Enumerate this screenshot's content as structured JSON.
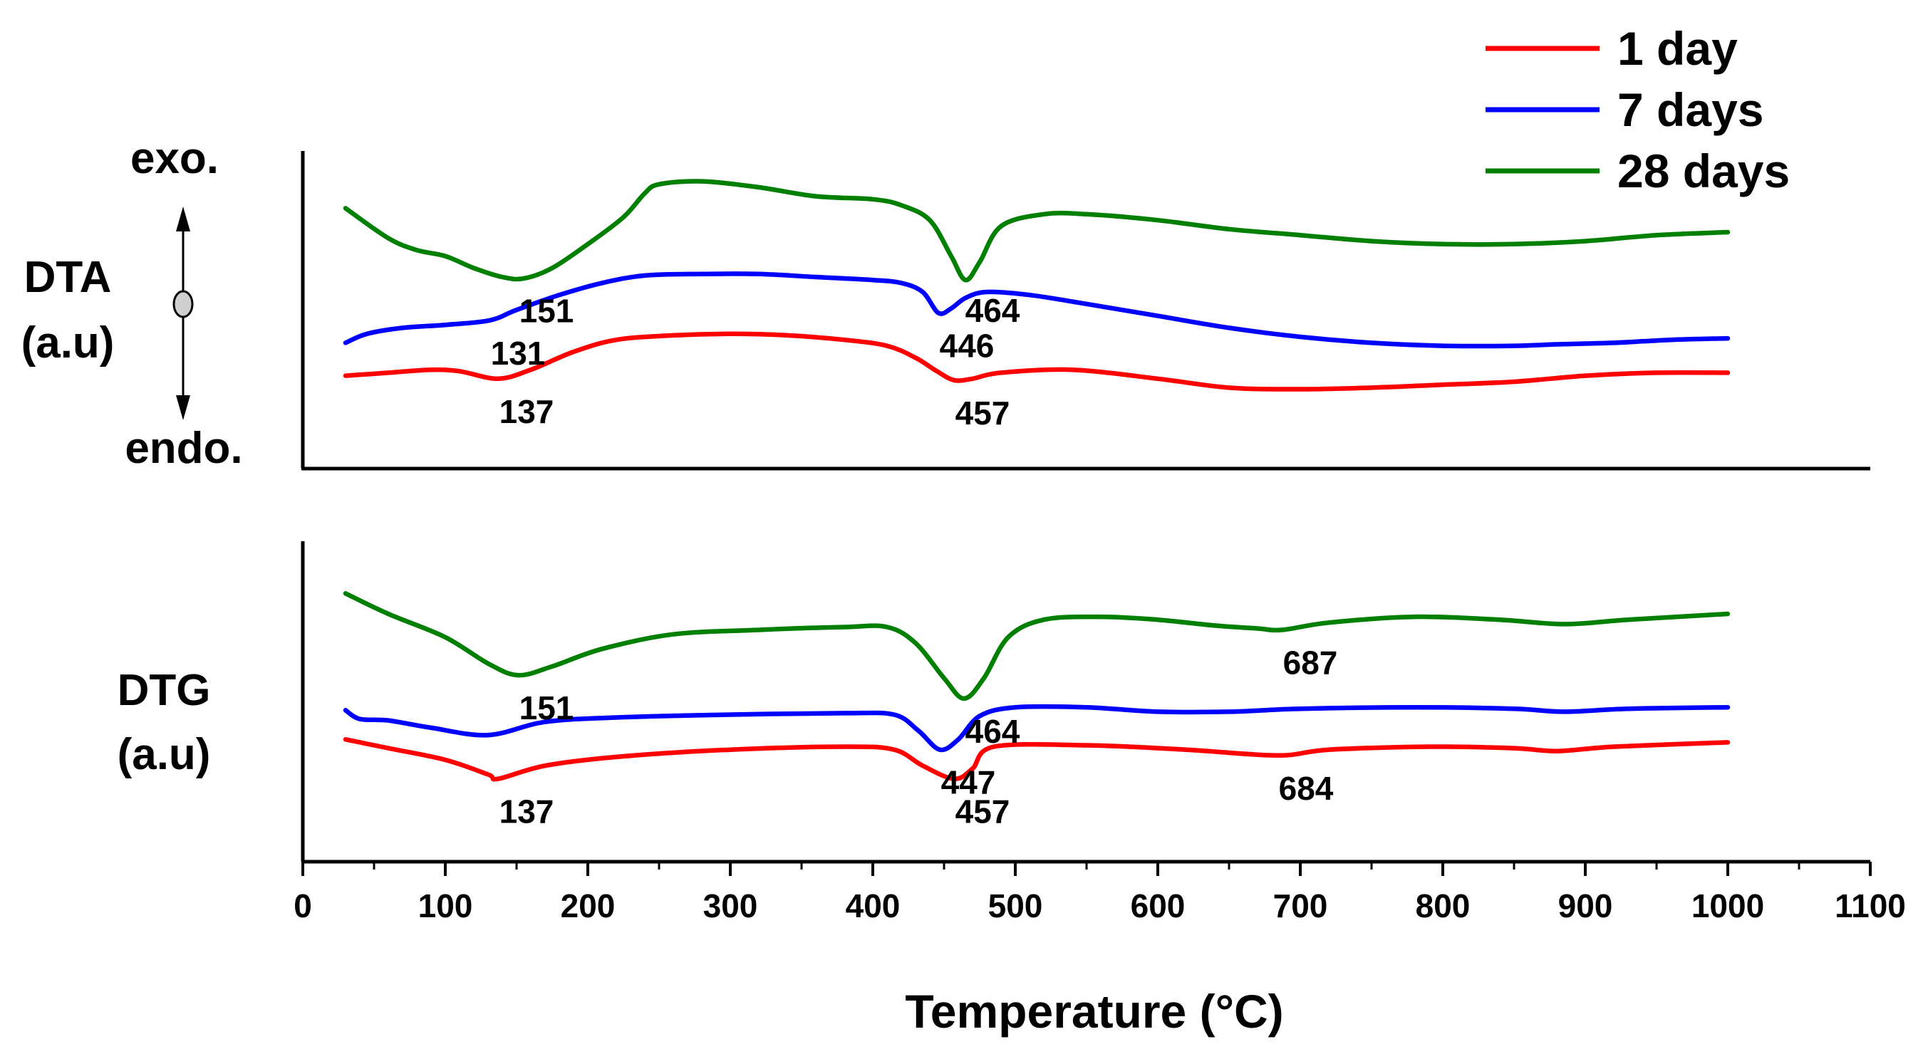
{
  "chart_data": {
    "type": "line",
    "xlabel": "Temperature (°C)",
    "xlim": [
      0,
      1100
    ],
    "x_ticks": [
      "0",
      "100",
      "200",
      "300",
      "400",
      "500",
      "600",
      "700",
      "800",
      "900",
      "1000",
      "1100"
    ],
    "legend": {
      "position": "top-right"
    },
    "series_colors": {
      "1 day": "#ff0000",
      "7 days": "#0000ff",
      "28 days": "#007f00"
    },
    "panels": [
      {
        "id": "dta",
        "ylabel_line1": "DTA",
        "ylabel_line2": "(a.u)",
        "exo_label": "exo.",
        "endo_label": "endo.",
        "y_ticks_shown": false,
        "series": [
          {
            "name": "28 days",
            "color": "#007f00",
            "points": [
              [
                30,
                0.78
              ],
              [
                60,
                0.68
              ],
              [
                80,
                0.64
              ],
              [
                100,
                0.62
              ],
              [
                120,
                0.58
              ],
              [
                140,
                0.55
              ],
              [
                155,
                0.545
              ],
              [
                175,
                0.58
              ],
              [
                200,
                0.66
              ],
              [
                225,
                0.75
              ],
              [
                240,
                0.83
              ],
              [
                250,
                0.86
              ],
              [
                280,
                0.87
              ],
              [
                320,
                0.85
              ],
              [
                360,
                0.82
              ],
              [
                400,
                0.81
              ],
              [
                420,
                0.79
              ],
              [
                440,
                0.74
              ],
              [
                455,
                0.62
              ],
              [
                465,
                0.54
              ],
              [
                475,
                0.6
              ],
              [
                490,
                0.72
              ],
              [
                520,
                0.76
              ],
              [
                550,
                0.76
              ],
              [
                600,
                0.74
              ],
              [
                650,
                0.71
              ],
              [
                700,
                0.69
              ],
              [
                750,
                0.67
              ],
              [
                800,
                0.66
              ],
              [
                850,
                0.66
              ],
              [
                900,
                0.67
              ],
              [
                950,
                0.69
              ],
              [
                1000,
                0.7
              ]
            ]
          },
          {
            "name": "7 days",
            "color": "#0000ff",
            "points": [
              [
                30,
                0.33
              ],
              [
                45,
                0.36
              ],
              [
                70,
                0.38
              ],
              [
                100,
                0.39
              ],
              [
                131,
                0.405
              ],
              [
                150,
                0.44
              ],
              [
                180,
                0.49
              ],
              [
                210,
                0.53
              ],
              [
                240,
                0.555
              ],
              [
                280,
                0.56
              ],
              [
                320,
                0.56
              ],
              [
                360,
                0.55
              ],
              [
                400,
                0.54
              ],
              [
                420,
                0.53
              ],
              [
                435,
                0.5
              ],
              [
                446,
                0.43
              ],
              [
                455,
                0.445
              ],
              [
                465,
                0.48
              ],
              [
                480,
                0.5
              ],
              [
                510,
                0.49
              ],
              [
                550,
                0.46
              ],
              [
                600,
                0.42
              ],
              [
                650,
                0.38
              ],
              [
                700,
                0.35
              ],
              [
                750,
                0.33
              ],
              [
                800,
                0.32
              ],
              [
                850,
                0.32
              ],
              [
                880,
                0.325
              ],
              [
                920,
                0.33
              ],
              [
                960,
                0.34
              ],
              [
                1000,
                0.345
              ]
            ]
          },
          {
            "name": "1 day",
            "color": "#ff0000",
            "points": [
              [
                30,
                0.22
              ],
              [
                60,
                0.23
              ],
              [
                90,
                0.24
              ],
              [
                110,
                0.235
              ],
              [
                137,
                0.21
              ],
              [
                160,
                0.24
              ],
              [
                190,
                0.3
              ],
              [
                220,
                0.34
              ],
              [
                260,
                0.355
              ],
              [
                300,
                0.36
              ],
              [
                340,
                0.355
              ],
              [
                380,
                0.34
              ],
              [
                410,
                0.32
              ],
              [
                430,
                0.28
              ],
              [
                445,
                0.235
              ],
              [
                457,
                0.205
              ],
              [
                470,
                0.21
              ],
              [
                490,
                0.23
              ],
              [
                540,
                0.24
              ],
              [
                600,
                0.21
              ],
              [
                650,
                0.18
              ],
              [
                700,
                0.175
              ],
              [
                750,
                0.18
              ],
              [
                800,
                0.19
              ],
              [
                850,
                0.2
              ],
              [
                900,
                0.22
              ],
              [
                950,
                0.23
              ],
              [
                1000,
                0.23
              ]
            ]
          }
        ],
        "annotations": [
          {
            "text": "151",
            "series": "28 days",
            "x": 151
          },
          {
            "text": "464",
            "series": "28 days",
            "x": 464
          },
          {
            "text": "131",
            "series": "7 days",
            "x": 131
          },
          {
            "text": "446",
            "series": "7 days",
            "x": 446
          },
          {
            "text": "137",
            "series": "1 day",
            "x": 137
          },
          {
            "text": "457",
            "series": "1 day",
            "x": 457
          }
        ]
      },
      {
        "id": "dtg",
        "ylabel_line1": "DTG",
        "ylabel_line2": "(a.u)",
        "y_ticks_shown": false,
        "series": [
          {
            "name": "28 days",
            "color": "#007f00",
            "points": [
              [
                30,
                0.87
              ],
              [
                60,
                0.8
              ],
              [
                100,
                0.72
              ],
              [
                130,
                0.63
              ],
              [
                151,
                0.59
              ],
              [
                175,
                0.62
              ],
              [
                210,
                0.68
              ],
              [
                260,
                0.73
              ],
              [
                320,
                0.745
              ],
              [
                380,
                0.755
              ],
              [
                410,
                0.755
              ],
              [
                430,
                0.7
              ],
              [
                450,
                0.58
              ],
              [
                464,
                0.51
              ],
              [
                478,
                0.58
              ],
              [
                495,
                0.72
              ],
              [
                520,
                0.78
              ],
              [
                560,
                0.79
              ],
              [
                600,
                0.78
              ],
              [
                640,
                0.76
              ],
              [
                670,
                0.75
              ],
              [
                687,
                0.745
              ],
              [
                720,
                0.77
              ],
              [
                780,
                0.79
              ],
              [
                840,
                0.78
              ],
              [
                885,
                0.765
              ],
              [
                930,
                0.78
              ],
              [
                1000,
                0.8
              ]
            ]
          },
          {
            "name": "7 days",
            "color": "#0000ff",
            "points": [
              [
                30,
                0.47
              ],
              [
                40,
                0.44
              ],
              [
                60,
                0.435
              ],
              [
                90,
                0.41
              ],
              [
                130,
                0.385
              ],
              [
                170,
                0.43
              ],
              [
                220,
                0.445
              ],
              [
                300,
                0.455
              ],
              [
                380,
                0.46
              ],
              [
                415,
                0.455
              ],
              [
                432,
                0.4
              ],
              [
                447,
                0.335
              ],
              [
                460,
                0.37
              ],
              [
                475,
                0.45
              ],
              [
                500,
                0.48
              ],
              [
                550,
                0.48
              ],
              [
                600,
                0.465
              ],
              [
                650,
                0.465
              ],
              [
                700,
                0.475
              ],
              [
                780,
                0.48
              ],
              [
                850,
                0.475
              ],
              [
                885,
                0.465
              ],
              [
                930,
                0.475
              ],
              [
                1000,
                0.48
              ]
            ]
          },
          {
            "name": "1 day",
            "color": "#ff0000",
            "points": [
              [
                30,
                0.37
              ],
              [
                60,
                0.34
              ],
              [
                100,
                0.3
              ],
              [
                130,
                0.25
              ],
              [
                137,
                0.235
              ],
              [
                170,
                0.28
              ],
              [
                220,
                0.31
              ],
              [
                300,
                0.335
              ],
              [
                380,
                0.345
              ],
              [
                415,
                0.335
              ],
              [
                435,
                0.28
              ],
              [
                457,
                0.235
              ],
              [
                470,
                0.27
              ],
              [
                485,
                0.345
              ],
              [
                550,
                0.35
              ],
              [
                620,
                0.335
              ],
              [
                684,
                0.315
              ],
              [
                720,
                0.335
              ],
              [
                790,
                0.345
              ],
              [
                850,
                0.34
              ],
              [
                880,
                0.33
              ],
              [
                920,
                0.345
              ],
              [
                1000,
                0.36
              ]
            ]
          }
        ],
        "annotations": [
          {
            "text": "151",
            "series": "28 days",
            "x": 151
          },
          {
            "text": "464",
            "series": "28 days",
            "x": 464
          },
          {
            "text": "687",
            "series": "28 days",
            "x": 687
          },
          {
            "text": "447",
            "series": "7 days",
            "x": 447
          },
          {
            "text": "137",
            "series": "1 day",
            "x": 137
          },
          {
            "text": "457",
            "series": "1 day",
            "x": 457
          },
          {
            "text": "684",
            "series": "1 day",
            "x": 684
          }
        ]
      }
    ],
    "legend_entries": [
      "1 day",
      "7 days",
      "28 days"
    ]
  }
}
